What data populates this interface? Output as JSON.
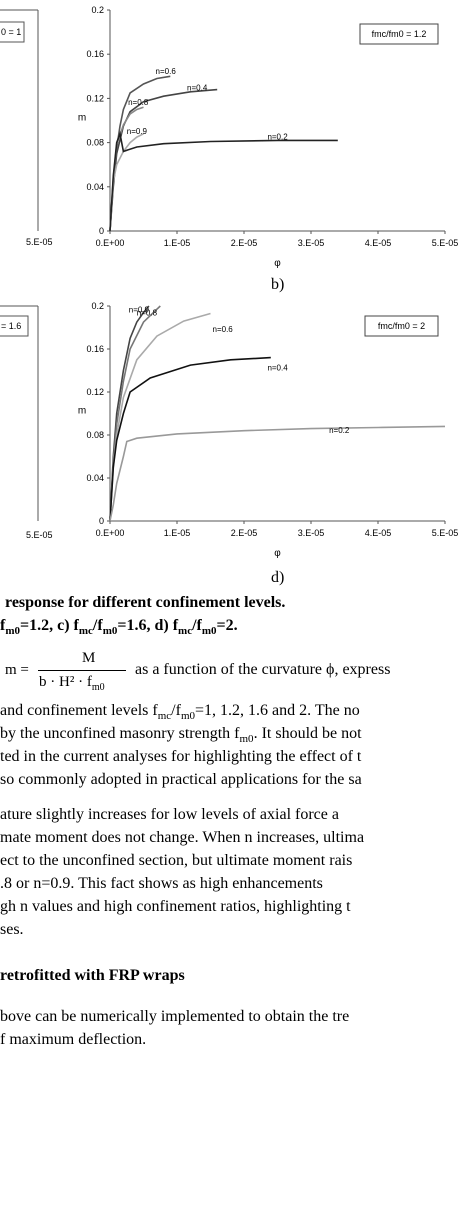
{
  "chart_data": [
    {
      "type": "line",
      "legend": "fmc/fm0 = 1.2",
      "xlabel": "φ",
      "ylabel": "m",
      "xlim": [
        0,
        5e-05
      ],
      "ylim": [
        0,
        0.2
      ],
      "x_ticks": [
        "0.E+00",
        "1.E-05",
        "2.E-05",
        "3.E-05",
        "4.E-05",
        "5.E-05"
      ],
      "y_ticks": [
        "0",
        "0.04",
        "0.08",
        "0.12",
        "0.16",
        "0.2"
      ],
      "series": [
        {
          "name": "n=0.6",
          "color": "#555555",
          "points": [
            [
              0,
              0
            ],
            [
              5e-07,
              0.045
            ],
            [
              1e-06,
              0.075
            ],
            [
              1.5e-06,
              0.095
            ],
            [
              2e-06,
              0.11
            ],
            [
              3e-06,
              0.125
            ],
            [
              5e-06,
              0.133
            ],
            [
              7e-06,
              0.138
            ],
            [
              9e-06,
              0.14
            ]
          ]
        },
        {
          "name": "n=0.4",
          "color": "#444444",
          "points": [
            [
              0,
              0
            ],
            [
              5e-07,
              0.04
            ],
            [
              1e-06,
              0.07
            ],
            [
              2e-06,
              0.095
            ],
            [
              3e-06,
              0.108
            ],
            [
              5e-06,
              0.117
            ],
            [
              8e-06,
              0.122
            ],
            [
              1.2e-05,
              0.126
            ],
            [
              1.6e-05,
              0.128
            ]
          ]
        },
        {
          "name": "n=0.8",
          "color": "#888888",
          "points": [
            [
              0,
              0
            ],
            [
              5e-07,
              0.048
            ],
            [
              1e-06,
              0.078
            ],
            [
              2e-06,
              0.096
            ],
            [
              3e-06,
              0.106
            ],
            [
              4e-06,
              0.11
            ],
            [
              5e-06,
              0.112
            ]
          ]
        },
        {
          "name": "n=0.9",
          "color": "#aaaaaa",
          "points": [
            [
              0,
              0
            ],
            [
              5e-07,
              0.045
            ],
            [
              1e-06,
              0.06
            ],
            [
              2e-06,
              0.072
            ],
            [
              3e-06,
              0.08
            ],
            [
              4e-06,
              0.085
            ],
            [
              5e-06,
              0.088
            ]
          ]
        },
        {
          "name": "n=0.2",
          "color": "#222222",
          "points": [
            [
              0,
              0
            ],
            [
              5e-07,
              0.05
            ],
            [
              1e-06,
              0.08
            ],
            [
              1.5e-06,
              0.088
            ],
            [
              2e-06,
              0.072
            ],
            [
              4e-06,
              0.076
            ],
            [
              8e-06,
              0.079
            ],
            [
              1.5e-05,
              0.081
            ],
            [
              2.5e-05,
              0.082
            ],
            [
              3.4e-05,
              0.082
            ]
          ]
        }
      ],
      "panel": "b)"
    },
    {
      "type": "line",
      "legend": "fmc/fm0 = 2",
      "xlabel": "φ",
      "ylabel": "m",
      "xlim": [
        0,
        5e-05
      ],
      "ylim": [
        0,
        0.2
      ],
      "x_ticks": [
        "0.E+00",
        "1.E-05",
        "2.E-05",
        "3.E-05",
        "4.E-05",
        "5.E-05"
      ],
      "y_ticks": [
        "0",
        "0.04",
        "0.08",
        "0.12",
        "0.16",
        "0.2"
      ],
      "series": [
        {
          "name": "n=0.9",
          "color": "#444444",
          "points": [
            [
              0,
              0
            ],
            [
              5e-07,
              0.06
            ],
            [
              1e-06,
              0.1
            ],
            [
              2e-06,
              0.14
            ],
            [
              3e-06,
              0.17
            ],
            [
              4e-06,
              0.185
            ],
            [
              5e-06,
              0.194
            ],
            [
              5.8e-06,
              0.2
            ]
          ]
        },
        {
          "name": "n=0.8",
          "color": "#777777",
          "points": [
            [
              0,
              0
            ],
            [
              5e-07,
              0.055
            ],
            [
              1e-06,
              0.09
            ],
            [
              2e-06,
              0.13
            ],
            [
              3e-06,
              0.16
            ],
            [
              5e-06,
              0.185
            ],
            [
              7e-06,
              0.197
            ],
            [
              7.5e-06,
              0.2
            ]
          ]
        },
        {
          "name": "n=0.6",
          "color": "#aaaaaa",
          "points": [
            [
              0,
              0
            ],
            [
              5e-07,
              0.05
            ],
            [
              1e-06,
              0.08
            ],
            [
              2e-06,
              0.115
            ],
            [
              4e-06,
              0.15
            ],
            [
              7e-06,
              0.172
            ],
            [
              1.1e-05,
              0.186
            ],
            [
              1.5e-05,
              0.193
            ]
          ]
        },
        {
          "name": "n=0.4",
          "color": "#111111",
          "points": [
            [
              0,
              0
            ],
            [
              5e-07,
              0.05
            ],
            [
              1e-06,
              0.075
            ],
            [
              2e-06,
              0.1
            ],
            [
              3e-06,
              0.12
            ],
            [
              6e-06,
              0.133
            ],
            [
              1.2e-05,
              0.145
            ],
            [
              1.8e-05,
              0.15
            ],
            [
              2.4e-05,
              0.152
            ]
          ]
        },
        {
          "name": "n=0.2",
          "color": "#999999",
          "points": [
            [
              0,
              0
            ],
            [
              5e-07,
              0.015
            ],
            [
              1e-06,
              0.035
            ],
            [
              2e-06,
              0.06
            ],
            [
              2.5e-06,
              0.074
            ],
            [
              4e-06,
              0.077
            ],
            [
              1e-05,
              0.081
            ],
            [
              2e-05,
              0.084
            ],
            [
              3e-05,
              0.086
            ],
            [
              4e-05,
              0.087
            ],
            [
              5e-05,
              0.088
            ]
          ]
        }
      ],
      "panel": "d)"
    }
  ],
  "left_fragments": {
    "top_legend": "0 = 1",
    "top_xtick": "5.E-05",
    "bottom_legend": "= 1.6",
    "bottom_xtick": "5.E-05"
  },
  "text": {
    "caption_line1": "response for different confinement levels.",
    "caption_line2": "f",
    "caption_line2_sub": "m0",
    "caption_line2_rest": "=1.2, c) f",
    "caption_sub_mc": "mc",
    "caption_slash": "/f",
    "caption_sub_m0": "m0",
    "caption_rest2": "=1.6, d) f",
    "caption_sub_mc2": "mc",
    "caption_slash2": "/f",
    "caption_sub_m02": "m0",
    "caption_end": "=2.",
    "formula_lhs": "m =",
    "formula_num": "M",
    "formula_den": "b · H² · f",
    "formula_den_sub": "m0",
    "formula_after": "as a function of the curvature ϕ, express",
    "p1_l1": "and confinement levels f",
    "p1_l1_sub1": "mc",
    "p1_l1_mid": "/f",
    "p1_l1_sub2": "m0",
    "p1_l1_end": "=1, 1.2, 1.6 and 2. The no",
    "p1_l2": "by the unconfined masonry strength f",
    "p1_l2_sub": "m0",
    "p1_l2_end": ". It should be not",
    "p1_l3": "ted in the current analyses for highlighting the effect of t",
    "p1_l4": "so commonly adopted in practical applications for the sa",
    "p2_l1": "ature slightly increases for low levels of axial force a",
    "p2_l2": "mate moment does not change. When n increases, ultima",
    "p2_l3": "ect to the unconfined section, but ultimate moment rais",
    "p2_l4": ".8 or n=0.9. This fact shows as high enhancements",
    "p2_l5": "gh n values and high confinement ratios, highlighting t",
    "p2_l6": "ses.",
    "heading": "retrofitted with FRP wraps",
    "p3_l1": "bove can be numerically implemented to obtain the tre",
    "p3_l2": "f maximum deflection."
  }
}
